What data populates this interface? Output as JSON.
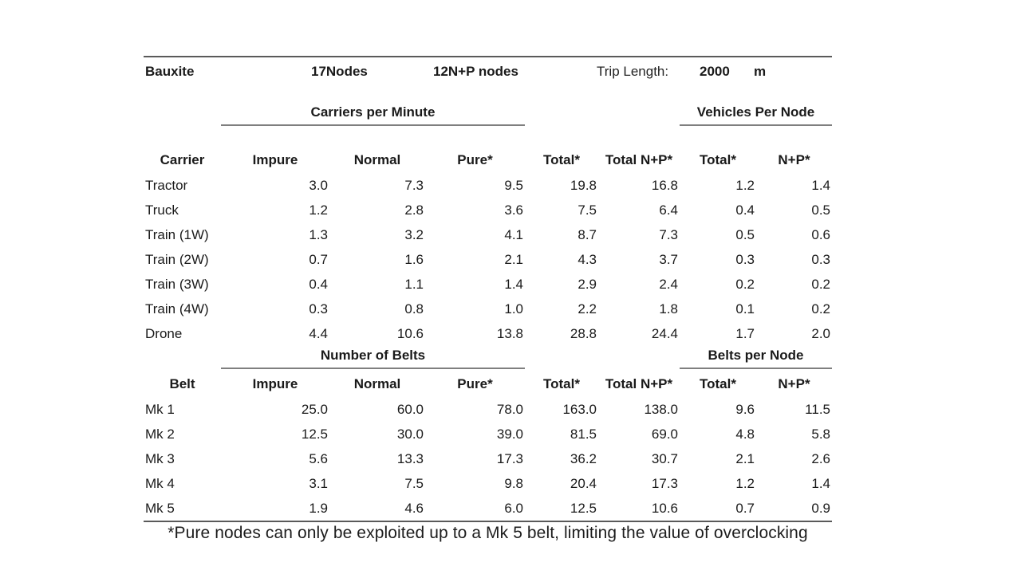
{
  "theme": {
    "background": "#ffffff",
    "text_color": "#1a1a1a",
    "rule_color": "#5a5a5a",
    "section_underline_color": "#7f7f7f"
  },
  "header": {
    "resource": "Bauxite",
    "nodes": "17Nodes",
    "np_nodes": "12N+P nodes",
    "trip_length_label": "Trip Length:",
    "trip_length_value": "2000",
    "trip_length_unit": "m"
  },
  "carriers_table": {
    "section_left": "Carriers per Minute",
    "section_right": "Vehicles Per Node",
    "columns": [
      "Carrier",
      "Impure",
      "Normal",
      "Pure*",
      "Total*",
      "Total N+P*",
      "Total*",
      "N+P*"
    ],
    "rows": [
      {
        "label": "Tractor",
        "values": [
          "3.0",
          "7.3",
          "9.5",
          "19.8",
          "16.8",
          "1.2",
          "1.4"
        ]
      },
      {
        "label": "Truck",
        "values": [
          "1.2",
          "2.8",
          "3.6",
          "7.5",
          "6.4",
          "0.4",
          "0.5"
        ]
      },
      {
        "label": "Train (1W)",
        "values": [
          "1.3",
          "3.2",
          "4.1",
          "8.7",
          "7.3",
          "0.5",
          "0.6"
        ]
      },
      {
        "label": "Train (2W)",
        "values": [
          "0.7",
          "1.6",
          "2.1",
          "4.3",
          "3.7",
          "0.3",
          "0.3"
        ]
      },
      {
        "label": "Train (3W)",
        "values": [
          "0.4",
          "1.1",
          "1.4",
          "2.9",
          "2.4",
          "0.2",
          "0.2"
        ]
      },
      {
        "label": "Train (4W)",
        "values": [
          "0.3",
          "0.8",
          "1.0",
          "2.2",
          "1.8",
          "0.1",
          "0.2"
        ]
      },
      {
        "label": "Drone",
        "values": [
          "4.4",
          "10.6",
          "13.8",
          "28.8",
          "24.4",
          "1.7",
          "2.0"
        ]
      }
    ]
  },
  "belts_table": {
    "section_left": "Number of Belts",
    "section_right": "Belts per Node",
    "columns": [
      "Belt",
      "Impure",
      "Normal",
      "Pure*",
      "Total*",
      "Total N+P*",
      "Total*",
      "N+P*"
    ],
    "rows": [
      {
        "label": "Mk 1",
        "values": [
          "25.0",
          "60.0",
          "78.0",
          "163.0",
          "138.0",
          "9.6",
          "11.5"
        ]
      },
      {
        "label": "Mk 2",
        "values": [
          "12.5",
          "30.0",
          "39.0",
          "81.5",
          "69.0",
          "4.8",
          "5.8"
        ]
      },
      {
        "label": "Mk 3",
        "values": [
          "5.6",
          "13.3",
          "17.3",
          "36.2",
          "30.7",
          "2.1",
          "2.6"
        ]
      },
      {
        "label": "Mk 4",
        "values": [
          "3.1",
          "7.5",
          "9.8",
          "20.4",
          "17.3",
          "1.2",
          "1.4"
        ]
      },
      {
        "label": "Mk 5",
        "values": [
          "1.9",
          "4.6",
          "6.0",
          "12.5",
          "10.6",
          "0.7",
          "0.9"
        ]
      }
    ]
  },
  "footnote": "*Pure nodes can only be exploited up to a Mk 5 belt, limiting the value of overclocking"
}
